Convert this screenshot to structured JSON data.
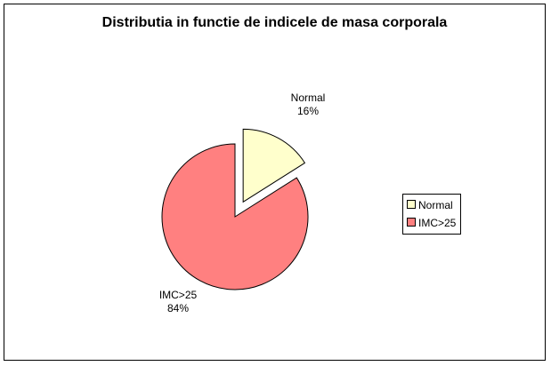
{
  "chart_data": {
    "type": "pie",
    "title": "Distributia in functie de indicele de masa corporala",
    "slices": [
      {
        "name": "Normal",
        "value": 16,
        "percent_label": "16%",
        "color": "#ffffcc",
        "exploded": true
      },
      {
        "name": "IMC>25",
        "value": 84,
        "percent_label": "84%",
        "color": "#ff8080",
        "exploded": false
      }
    ],
    "legend": {
      "placement": "right",
      "entries": [
        "Normal",
        "IMC>25"
      ]
    }
  }
}
